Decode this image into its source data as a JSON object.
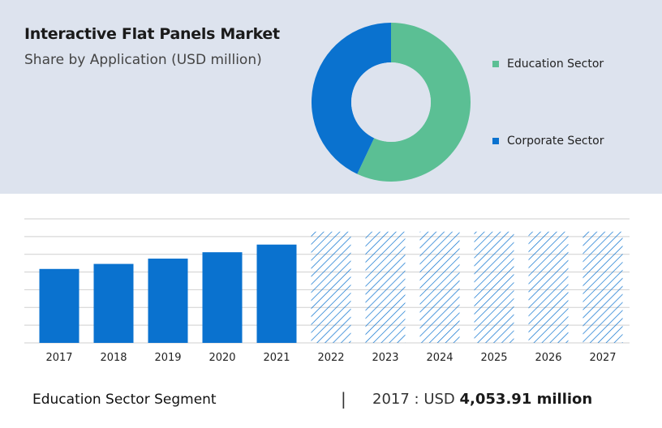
{
  "header": {
    "title": "Interactive Flat Panels Market",
    "subtitle": "Share by Application (USD million)"
  },
  "chart_data": [
    {
      "type": "pie",
      "variant": "donut",
      "slices": [
        {
          "name": "Education Sector",
          "value": 57,
          "color": "#5bbf94"
        },
        {
          "name": "Corporate Sector",
          "value": 43,
          "color": "#0a72cf"
        }
      ],
      "legend_position": "right"
    },
    {
      "type": "bar",
      "categories": [
        "2017",
        "2018",
        "2019",
        "2020",
        "2021",
        "2022",
        "2023",
        "2024",
        "2025",
        "2026",
        "2027"
      ],
      "values": [
        4053.91,
        4330,
        4620,
        4970,
        5390,
        6100,
        6100,
        6100,
        6100,
        6100,
        6100
      ],
      "forecast_from": "2022",
      "colors": {
        "actual": "#0a72cf",
        "forecast": "#0a72cf"
      },
      "ylim": [
        0,
        6800
      ],
      "grid": true
    }
  ],
  "footer": {
    "segment_label": "Education Sector Segment",
    "separator": "|",
    "year_prefix": "2017 : USD",
    "value_text": "4,053.91 million"
  }
}
